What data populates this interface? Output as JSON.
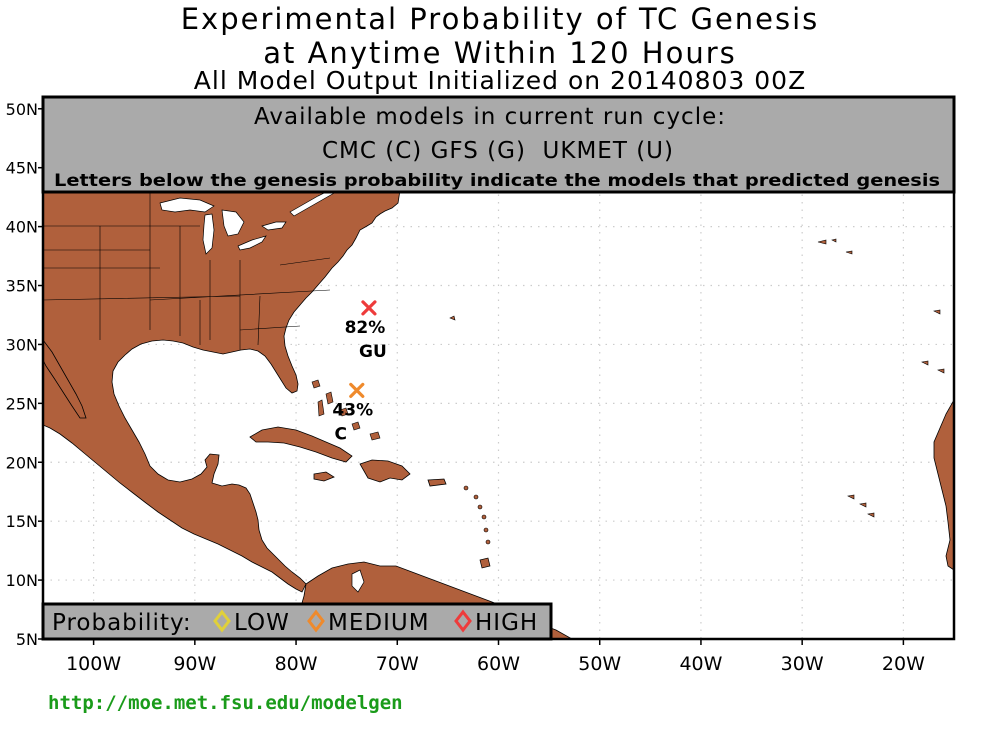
{
  "title": {
    "line1": "Experimental Probability of TC Genesis",
    "line2": "at Anytime Within 120 Hours",
    "line3": "All Model Output Initialized on 20140803 00Z"
  },
  "info_box": {
    "line1": "Available models in current run cycle:",
    "line2": "CMC (C) GFS (G)  UKMET (U)",
    "line3": "Letters below the genesis probability indicate the models that predicted genesis"
  },
  "axes": {
    "lon_ticks": [
      {
        "lon": -100,
        "label": "100W"
      },
      {
        "lon": -90,
        "label": "90W"
      },
      {
        "lon": -80,
        "label": "80W"
      },
      {
        "lon": -70,
        "label": "70W"
      },
      {
        "lon": -60,
        "label": "60W"
      },
      {
        "lon": -50,
        "label": "50W"
      },
      {
        "lon": -40,
        "label": "40W"
      },
      {
        "lon": -30,
        "label": "30W"
      },
      {
        "lon": -20,
        "label": "20W"
      }
    ],
    "lat_ticks": [
      {
        "lat": 5,
        "label": "5N"
      },
      {
        "lat": 10,
        "label": "10N"
      },
      {
        "lat": 15,
        "label": "15N"
      },
      {
        "lat": 20,
        "label": "20N"
      },
      {
        "lat": 25,
        "label": "25N"
      },
      {
        "lat": 30,
        "label": "30N"
      },
      {
        "lat": 35,
        "label": "35N"
      },
      {
        "lat": 40,
        "label": "40N"
      },
      {
        "lat": 45,
        "label": "45N"
      },
      {
        "lat": 50,
        "label": "50N"
      }
    ],
    "lon_range": [
      -105,
      -15
    ],
    "lat_range": [
      5,
      51
    ],
    "grid": true
  },
  "genesis_points": [
    {
      "lon": -72.8,
      "lat": 33.1,
      "probability": "82%",
      "models": "GU",
      "category": "HIGH",
      "color": "#ee3b3b"
    },
    {
      "lon": -74.0,
      "lat": 26.1,
      "probability": "43%",
      "models": "C",
      "category": "MEDIUM",
      "color": "#ef8a2c"
    }
  ],
  "legend": {
    "label": "Probability:",
    "items": [
      {
        "label": "LOW",
        "color": "#e0d03a"
      },
      {
        "label": "MEDIUM",
        "color": "#ef8a2c"
      },
      {
        "label": "HIGH",
        "color": "#ee3b3b"
      }
    ]
  },
  "colors": {
    "land": "#b0603c",
    "panel": "#aaaaaa",
    "grid": "#cccccc"
  },
  "footer": {
    "url": "http://moe.met.fsu.edu/modelgen"
  }
}
